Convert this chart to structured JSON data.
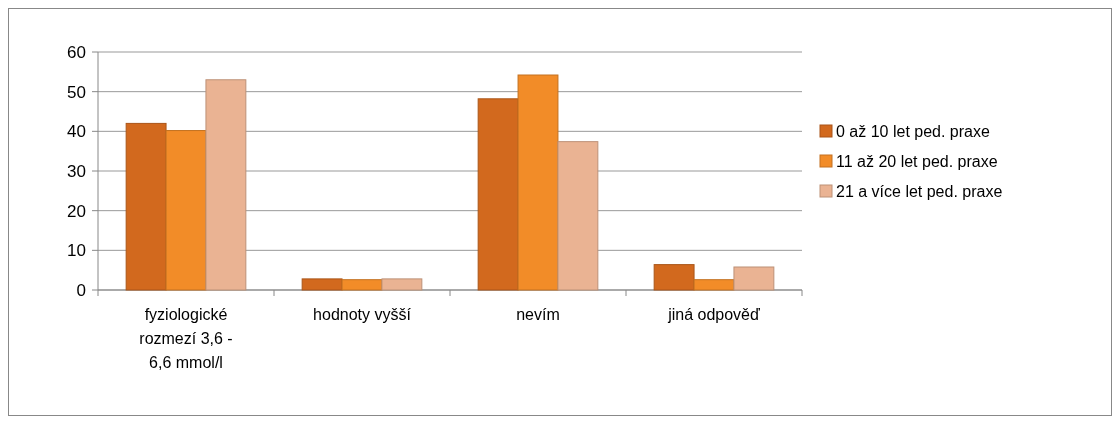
{
  "chart_data": {
    "type": "bar",
    "categories": [
      "fyziologické rozmezí 3,6 - 6,6 mmol/l",
      "hodnoty vyšší",
      "nevím",
      "jiná odpověď"
    ],
    "series": [
      {
        "name": "0 až 10 let ped. praxe",
        "color": "#d2691e",
        "values": [
          42,
          2.8,
          48.2,
          6.4
        ]
      },
      {
        "name": "11 až 20 let ped. praxe",
        "color": "#f28c28",
        "values": [
          40.2,
          2.6,
          54.2,
          2.6
        ]
      },
      {
        "name": "21 a více let ped. praxe",
        "color": "#eab393",
        "values": [
          53,
          2.8,
          37.4,
          5.8
        ]
      }
    ],
    "ylim": [
      0,
      60
    ],
    "yticks": [
      0,
      10,
      20,
      30,
      40,
      50,
      60
    ],
    "grid": "y",
    "legend": "right"
  }
}
